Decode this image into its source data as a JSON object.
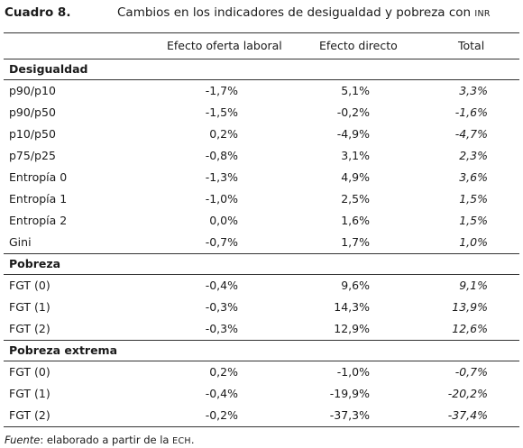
{
  "caption": {
    "number": "Cuadro 8.",
    "title": "Cambios en los indicadores de desigualdad y pobreza con",
    "title_abbrev": "INR"
  },
  "table": {
    "headers": [
      "",
      "Efecto oferta laboral",
      "Efecto directo",
      "Total"
    ],
    "sections": [
      {
        "title": "Desigualdad",
        "rows": [
          [
            "p90/p10",
            "-1,7%",
            "5,1%",
            "3,3%"
          ],
          [
            "p90/p50",
            "-1,5%",
            "-0,2%",
            "-1,6%"
          ],
          [
            "p10/p50",
            "0,2%",
            "-4,9%",
            "-4,7%"
          ],
          [
            "p75/p25",
            "-0,8%",
            "3,1%",
            "2,3%"
          ],
          [
            "Entropía 0",
            "-1,3%",
            "4,9%",
            "3,6%"
          ],
          [
            "Entropía 1",
            "-1,0%",
            "2,5%",
            "1,5%"
          ],
          [
            "Entropía 2",
            "0,0%",
            "1,6%",
            "1,5%"
          ],
          [
            "Gini",
            "-0,7%",
            "1,7%",
            "1,0%"
          ]
        ]
      },
      {
        "title": "Pobreza",
        "rows": [
          [
            "FGT (0)",
            "-0,4%",
            "9,6%",
            "9,1%"
          ],
          [
            "FGT (1)",
            "-0,3%",
            "14,3%",
            "13,9%"
          ],
          [
            "FGT (2)",
            "-0,3%",
            "12,9%",
            "12,6%"
          ]
        ]
      },
      {
        "title": "Pobreza extrema",
        "rows": [
          [
            "FGT (0)",
            "0,2%",
            "-1,0%",
            "-0,7%"
          ],
          [
            "FGT (1)",
            "-0,4%",
            "-19,9%",
            "-20,2%"
          ],
          [
            "FGT (2)",
            "-0,2%",
            "-37,3%",
            "-37,4%"
          ]
        ]
      }
    ]
  },
  "source": {
    "label": "Fuente",
    "text": ": elaborado a partir de la",
    "abbrev": "ECH",
    "end": "."
  }
}
